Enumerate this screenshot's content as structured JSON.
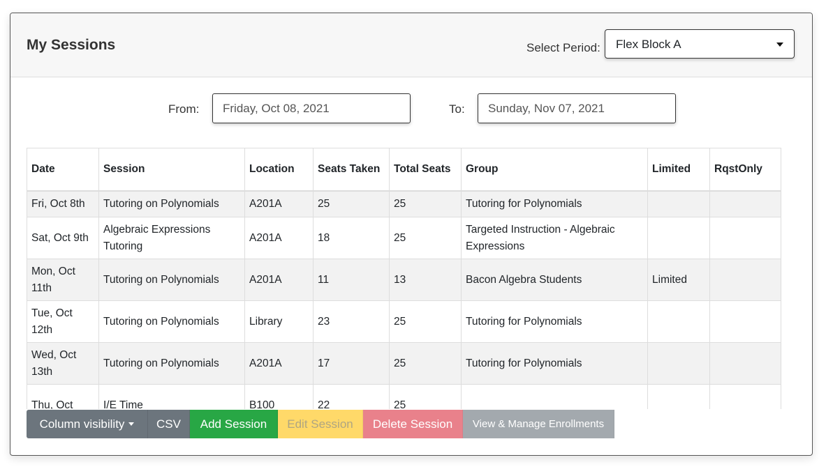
{
  "header": {
    "title": "My Sessions",
    "period_label": "Select Period:",
    "period_value": "Flex Block A"
  },
  "filters": {
    "from_label": "From:",
    "from_value": "Friday, Oct 08, 2021",
    "to_label": "To:",
    "to_value": "Sunday, Nov 07, 2021"
  },
  "table": {
    "columns": [
      "Date",
      "Session",
      "Location",
      "Seats Taken",
      "Total Seats",
      "Group",
      "Limited",
      "RqstOnly"
    ],
    "rows": [
      [
        "Fri, Oct 8th",
        "Tutoring on Polynomials",
        "A201A",
        25,
        25,
        "Tutoring for Polynomials",
        null,
        null
      ],
      [
        "Sat, Oct 9th",
        "Algebraic Expressions Tutoring",
        "A201A",
        18,
        25,
        "Targeted Instruction - Algebraic Expressions",
        null,
        null
      ],
      [
        "Mon, Oct 11th",
        "Tutoring on Polynomials",
        "A201A",
        11,
        13,
        "Bacon Algebra Students",
        "Limited",
        null
      ],
      [
        "Tue, Oct 12th",
        "Tutoring on Polynomials",
        "Library",
        23,
        25,
        "Tutoring for Polynomials",
        null,
        null
      ],
      [
        "Wed, Oct 13th",
        "Tutoring on Polynomials",
        "A201A",
        17,
        25,
        "Tutoring for Polynomials",
        null,
        null
      ],
      [
        "Thu, Oct",
        "I/E Time",
        "B100",
        22,
        25,
        null,
        null,
        null
      ]
    ]
  },
  "buttons": [
    "Column visibility",
    "CSV",
    "Add Session",
    "Edit Session",
    "Delete Session",
    "View & Manage Enrollments"
  ]
}
